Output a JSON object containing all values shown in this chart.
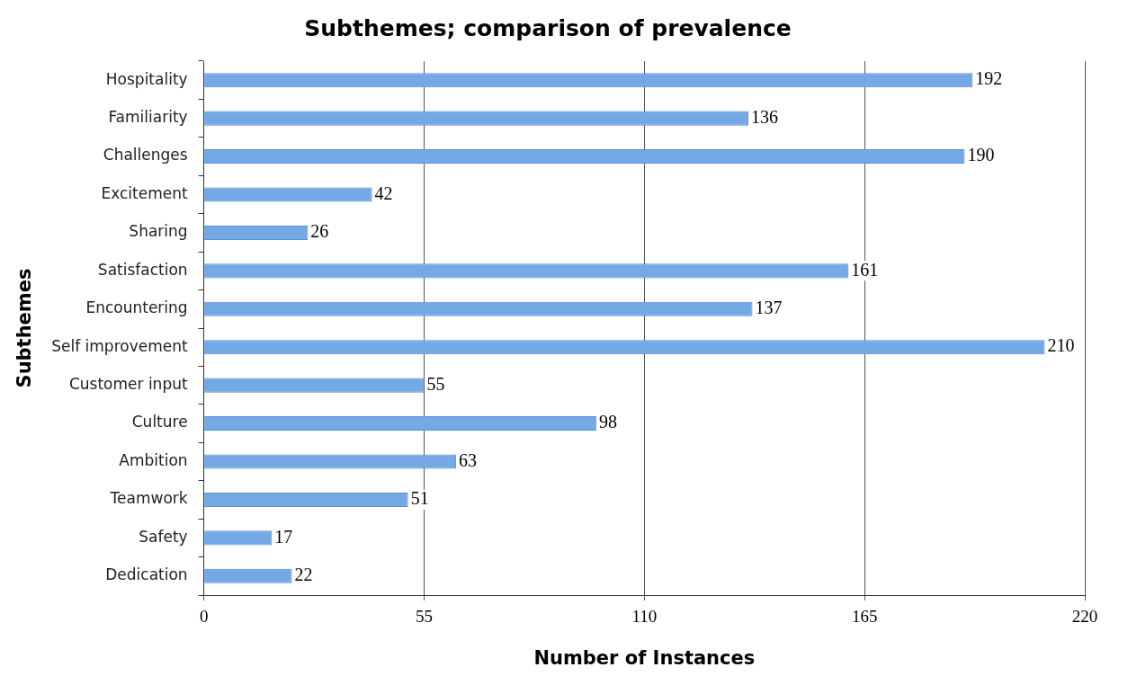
{
  "chart_data": {
    "type": "bar",
    "orientation": "horizontal",
    "title": "Subthemes; comparison of prevalence",
    "xlabel": "Number of Instances",
    "ylabel": "Subthemes",
    "categories": [
      "Hospitality",
      "Familiarity",
      "Challenges",
      "Excitement",
      "Sharing",
      "Satisfaction",
      "Encountering",
      "Self improvement",
      "Customer input",
      "Culture",
      "Ambition",
      "Teamwork",
      "Safety",
      "Dedication"
    ],
    "values": [
      192,
      136,
      190,
      42,
      26,
      161,
      137,
      210,
      55,
      98,
      63,
      51,
      17,
      22
    ],
    "color": "#74a9e6",
    "xlim": [
      0,
      220
    ],
    "xticks": [
      0,
      55,
      110,
      165,
      220
    ],
    "grid": "x",
    "data_labels": true,
    "legend": false
  }
}
